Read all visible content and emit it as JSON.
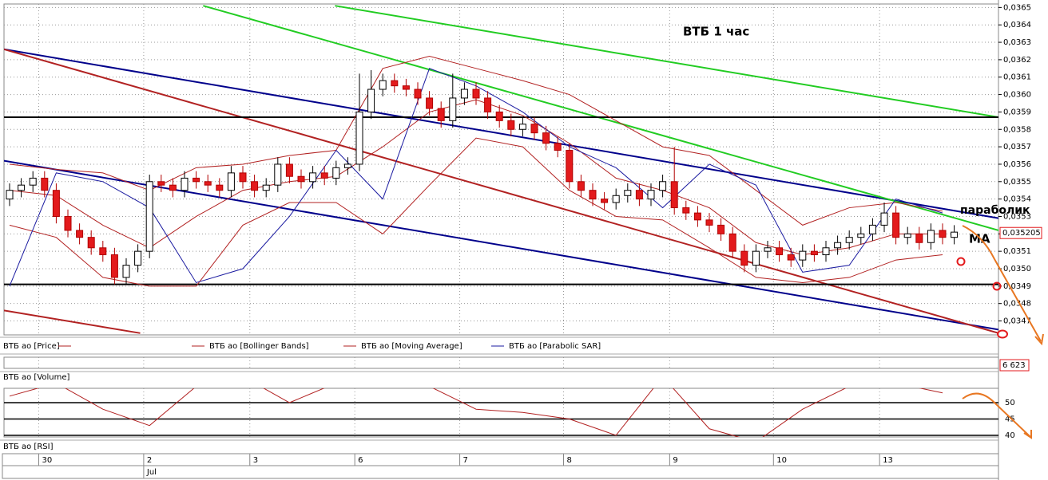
{
  "chart_data": [
    {
      "type": "candlestick",
      "title": "ВТБ   1 час",
      "annotations": [
        "параболик",
        "MA"
      ],
      "candles": {
        "up_color": "#ffffff",
        "down_color": "#e31a1c",
        "open": [
          0.0354,
          0.03545,
          0.03548,
          0.03552,
          0.03545,
          0.0353,
          0.03522,
          0.03518,
          0.03512,
          0.03508,
          0.03495,
          0.03502,
          0.0351,
          0.0355,
          0.03548,
          0.03545,
          0.03552,
          0.0355,
          0.03548,
          0.03545,
          0.03555,
          0.0355,
          0.03545,
          0.03548,
          0.0356,
          0.03553,
          0.0355,
          0.03555,
          0.03552,
          0.03558,
          0.0356,
          0.0359,
          0.03603,
          0.03608,
          0.03605,
          0.03603,
          0.03598,
          0.03592,
          0.03585,
          0.03598,
          0.03603,
          0.03598,
          0.0359,
          0.03585,
          0.0358,
          0.03583,
          0.03578,
          0.03572,
          0.03568,
          0.0355,
          0.03545,
          0.0354,
          0.03538,
          0.03542,
          0.03545,
          0.0354,
          0.03545,
          0.0355,
          0.03535,
          0.03532,
          0.03528,
          0.03525,
          0.0352,
          0.0351,
          0.03502,
          0.0351,
          0.03512,
          0.03508,
          0.03505,
          0.0351,
          0.03508,
          0.03512,
          0.03515,
          0.03518,
          0.0352,
          0.03525,
          0.03532,
          0.03518,
          0.0352,
          0.03515,
          0.03522,
          0.03518
        ],
        "high": [
          0.03549,
          0.03552,
          0.03556,
          0.03556,
          0.03549,
          0.03534,
          0.03526,
          0.03522,
          0.03516,
          0.03512,
          0.03506,
          0.03514,
          0.03554,
          0.03554,
          0.03552,
          0.03556,
          0.03556,
          0.03554,
          0.03552,
          0.03559,
          0.03559,
          0.03554,
          0.03552,
          0.03564,
          0.03564,
          0.03557,
          0.03559,
          0.03559,
          0.03562,
          0.03564,
          0.03612,
          0.03614,
          0.03612,
          0.03612,
          0.03609,
          0.03607,
          0.03602,
          0.03596,
          0.03612,
          0.03607,
          0.03607,
          0.03602,
          0.03594,
          0.03589,
          0.03587,
          0.03587,
          0.03582,
          0.03576,
          0.03572,
          0.03554,
          0.03549,
          0.03544,
          0.03546,
          0.03549,
          0.03549,
          0.03549,
          0.03554,
          0.0357,
          0.03539,
          0.03536,
          0.03532,
          0.03529,
          0.03524,
          0.03514,
          0.03514,
          0.03516,
          0.03516,
          0.03512,
          0.03514,
          0.03514,
          0.03516,
          0.03519,
          0.03522,
          0.03524,
          0.03529,
          0.03538,
          0.03536,
          0.03524,
          0.03524,
          0.03526,
          0.03526,
          0.03525
        ],
        "low": [
          0.03536,
          0.03541,
          0.03544,
          0.03541,
          0.03526,
          0.03518,
          0.03514,
          0.03508,
          0.03504,
          0.03491,
          0.03491,
          0.03498,
          0.03506,
          0.03544,
          0.03541,
          0.03541,
          0.03546,
          0.03544,
          0.03541,
          0.03541,
          0.03546,
          0.03541,
          0.03541,
          0.03544,
          0.03549,
          0.03546,
          0.03546,
          0.03548,
          0.03548,
          0.03554,
          0.03556,
          0.03586,
          0.03599,
          0.03601,
          0.03599,
          0.03594,
          0.03588,
          0.03581,
          0.03581,
          0.03594,
          0.03594,
          0.03586,
          0.03581,
          0.03576,
          0.03576,
          0.03574,
          0.03568,
          0.03564,
          0.03546,
          0.03541,
          0.03536,
          0.03534,
          0.03534,
          0.03538,
          0.03536,
          0.03536,
          0.03541,
          0.03531,
          0.03528,
          0.03524,
          0.03521,
          0.03516,
          0.03506,
          0.03498,
          0.03498,
          0.03506,
          0.03504,
          0.03501,
          0.03501,
          0.03504,
          0.03504,
          0.03508,
          0.03511,
          0.03514,
          0.03516,
          0.03521,
          0.03514,
          0.03514,
          0.03511,
          0.03511,
          0.03514,
          0.03514
        ],
        "close": [
          0.03545,
          0.03548,
          0.03552,
          0.03545,
          0.0353,
          0.03522,
          0.03518,
          0.03512,
          0.03508,
          0.03495,
          0.03502,
          0.0351,
          0.0355,
          0.03548,
          0.03545,
          0.03552,
          0.0355,
          0.03548,
          0.03545,
          0.03555,
          0.0355,
          0.03545,
          0.03548,
          0.0356,
          0.03553,
          0.0355,
          0.03555,
          0.03552,
          0.03558,
          0.0356,
          0.0359,
          0.03603,
          0.03608,
          0.03605,
          0.03603,
          0.03598,
          0.03592,
          0.03585,
          0.03598,
          0.03603,
          0.03598,
          0.0359,
          0.03585,
          0.0358,
          0.03583,
          0.03578,
          0.03572,
          0.03568,
          0.0355,
          0.03545,
          0.0354,
          0.03538,
          0.03542,
          0.03545,
          0.0354,
          0.03545,
          0.0355,
          0.03535,
          0.03532,
          0.03528,
          0.03525,
          0.0352,
          0.0351,
          0.03502,
          0.0351,
          0.03512,
          0.03508,
          0.03505,
          0.0351,
          0.03508,
          0.03512,
          0.03515,
          0.03518,
          0.0352,
          0.03525,
          0.03532,
          0.03518,
          0.0352,
          0.03515,
          0.03522,
          0.03518,
          0.03521
        ]
      },
      "series": [
        {
          "name": "ВТБ ao [Price]",
          "color": "#b22222"
        },
        {
          "name": "ВТБ ao [Bollinger Bands]",
          "color": "#b22222",
          "x": [
            0,
            4,
            8,
            12,
            16,
            20,
            24,
            28,
            32,
            36,
            40,
            44,
            48,
            52,
            56,
            60,
            64,
            68,
            72,
            76,
            80
          ],
          "upper": [
            0.0356,
            0.03557,
            0.03555,
            0.03545,
            0.03558,
            0.0356,
            0.03565,
            0.03568,
            0.03615,
            0.03622,
            0.03615,
            0.03608,
            0.036,
            0.03585,
            0.0357,
            0.03565,
            0.03545,
            0.03525,
            0.03535,
            0.03538,
            0.03533
          ],
          "lower": [
            0.03525,
            0.03518,
            0.03495,
            0.0349,
            0.0349,
            0.03525,
            0.03538,
            0.03538,
            0.0352,
            0.03548,
            0.03575,
            0.0357,
            0.03545,
            0.0353,
            0.03528,
            0.03512,
            0.03495,
            0.03492,
            0.03495,
            0.03505,
            0.03508
          ]
        },
        {
          "name": "ВТБ ao [Moving Average]",
          "color": "#b22222",
          "x": [
            0,
            4,
            8,
            12,
            16,
            20,
            24,
            28,
            32,
            36,
            40,
            44,
            48,
            52,
            56,
            60,
            64,
            68,
            72,
            76,
            80
          ],
          "values": [
            0.03545,
            0.03542,
            0.03525,
            0.03512,
            0.0353,
            0.03545,
            0.0355,
            0.03553,
            0.0357,
            0.0359,
            0.03597,
            0.03588,
            0.03572,
            0.03552,
            0.03545,
            0.03535,
            0.03515,
            0.03508,
            0.03512,
            0.0352,
            0.0352
          ]
        },
        {
          "name": "ВТБ ao [Parabolic SAR]",
          "color": "#1a1aa0",
          "x": [
            0,
            4,
            8,
            12,
            16,
            20,
            24,
            28,
            32,
            36,
            40,
            44,
            48,
            52,
            56,
            60,
            64,
            68,
            72,
            76,
            80
          ],
          "values": [
            0.0349,
            0.03555,
            0.0355,
            0.03535,
            0.03492,
            0.035,
            0.0353,
            0.03568,
            0.0354,
            0.03615,
            0.03605,
            0.0359,
            0.0357,
            0.03558,
            0.03535,
            0.0356,
            0.03548,
            0.03498,
            0.03502,
            0.0354,
            0.03532
          ]
        }
      ],
      "lines": [
        {
          "color": "#00008b",
          "x": [
            -0.48,
            84.8
          ],
          "y": [
            0.03626,
            0.03529
          ]
        },
        {
          "color": "#00008b",
          "x": [
            -0.48,
            84.8
          ],
          "y": [
            0.03562,
            0.03465
          ]
        },
        {
          "color": "#b22222",
          "x": [
            -0.48,
            84.8
          ],
          "y": [
            0.03626,
            0.03463
          ]
        },
        {
          "color": "#b22222",
          "x": [
            -0.48,
            11.2
          ],
          "y": [
            0.03476,
            0.03463
          ]
        },
        {
          "color": "#22cc22",
          "x": [
            16.6,
            84.8
          ],
          "y": [
            0.03651,
            0.03522
          ]
        },
        {
          "color": "#22cc22",
          "x": [
            27.9,
            84.8
          ],
          "y": [
            0.03651,
            0.03587
          ]
        },
        {
          "color": "#000000",
          "x": [
            -0.48,
            84.8
          ],
          "y": [
            0.03587,
            0.03587
          ]
        },
        {
          "color": "#000000",
          "x": [
            -0.48,
            84.8
          ],
          "y": [
            0.03491,
            0.03491
          ]
        }
      ],
      "xticks": [
        {
          "value": 2.5,
          "label": "30"
        },
        {
          "value": 11.5,
          "label": "2"
        },
        {
          "value": 20.6,
          "label": "3"
        },
        {
          "value": 29.6,
          "label": "6"
        },
        {
          "value": 38.6,
          "label": "7"
        },
        {
          "value": 47.5,
          "label": "8"
        },
        {
          "value": 56.6,
          "label": "9"
        },
        {
          "value": 65.5,
          "label": "10"
        },
        {
          "value": 74.6,
          "label": "13"
        }
      ],
      "month_ticks": [
        {
          "value": 11.5,
          "label": "Jul"
        }
      ],
      "ylim": [
        0.03462,
        0.03652
      ],
      "yticks": [
        {
          "value": 0.0347,
          "label": "0,0347"
        },
        {
          "value": 0.0348,
          "label": "0,0348"
        },
        {
          "value": 0.0349,
          "label": "0,0349"
        },
        {
          "value": 0.035,
          "label": "0,0350"
        },
        {
          "value": 0.0351,
          "label": "0,0351"
        },
        {
          "value": 0.0352,
          "label": "0,0352"
        },
        {
          "value": 0.0353,
          "label": "0,0353"
        },
        {
          "value": 0.0354,
          "label": "0,0354"
        },
        {
          "value": 0.0355,
          "label": "0,0355"
        },
        {
          "value": 0.0356,
          "label": "0,0356"
        },
        {
          "value": 0.0357,
          "label": "0,0357"
        },
        {
          "value": 0.0358,
          "label": "0,0358"
        },
        {
          "value": 0.0359,
          "label": "0,0359"
        },
        {
          "value": 0.036,
          "label": "0,0360"
        },
        {
          "value": 0.0361,
          "label": "0,0361"
        },
        {
          "value": 0.0362,
          "label": "0,0362"
        },
        {
          "value": 0.0363,
          "label": "0,0363"
        },
        {
          "value": 0.0364,
          "label": "0,0364"
        },
        {
          "value": 0.0365,
          "label": "0,0365"
        }
      ],
      "last_price": {
        "value": 0.035205,
        "label": "0,035205"
      },
      "grid": true
    },
    {
      "type": "bar",
      "title": "ВТБ ao [Volume]",
      "values": [
        6623
      ],
      "value_labels": [
        "6 623"
      ],
      "color": "#e31a1c"
    },
    {
      "type": "line",
      "title": "ВТБ ao [RSI]",
      "color": "#b22222",
      "x": [
        0,
        4,
        8,
        12,
        16,
        20,
        24,
        28,
        32,
        36,
        40,
        44,
        48,
        52,
        56,
        60,
        64,
        68,
        72,
        76,
        80
      ],
      "values": [
        52,
        56,
        48,
        43,
        55,
        58,
        50,
        56,
        60,
        55,
        48,
        47,
        45,
        40,
        58,
        42,
        38,
        48,
        55,
        56,
        53
      ],
      "ylim": [
        39.5,
        54.4
      ],
      "yticks": [
        40,
        45,
        50
      ]
    }
  ]
}
